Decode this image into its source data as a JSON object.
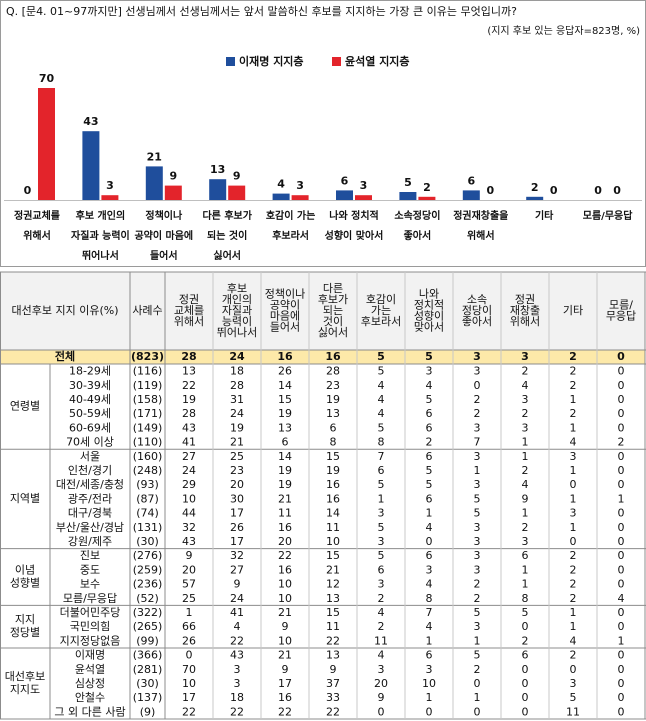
{
  "chart_data": {
    "type": "bar",
    "title": "Q. [문4. 01~97까지만] 선생님께서 선생님께서는 앞서 말씀하신 후보를 지지하는 가장 큰 이유는 무엇입니까?",
    "subtitle": "(지지 후보 있는 응답자=823명, %)",
    "categories": [
      [
        "정권교체를",
        "위해서"
      ],
      [
        "후보 개인의",
        "자질과 능력이",
        "뛰어나서"
      ],
      [
        "정책이나",
        "공약이 마음에",
        "들어서"
      ],
      [
        "다른 후보가",
        "되는 것이",
        "싫어서"
      ],
      [
        "호감이 가는",
        "후보라서"
      ],
      [
        "나와 정치적",
        "성향이 맞아서"
      ],
      [
        "소속정당이",
        "좋아서"
      ],
      [
        "정권재창출을",
        "위해서"
      ],
      [
        "기타"
      ],
      [
        "모름/무응답"
      ]
    ],
    "series": [
      {
        "name": "이재명 지지층",
        "color": "#1f4e9c",
        "values": [
          0,
          43,
          21,
          13,
          4,
          6,
          5,
          6,
          2,
          0
        ]
      },
      {
        "name": "윤석열 지지층",
        "color": "#e3242b",
        "values": [
          70,
          3,
          9,
          9,
          3,
          3,
          2,
          0,
          0,
          0
        ]
      }
    ]
  },
  "table": {
    "corner": "대선후보 지지 이유(%)",
    "n_header": "사례수",
    "columns": [
      [
        "정권",
        "교체를",
        "위해서"
      ],
      [
        "후보",
        "개인의",
        "자질과",
        "능력이",
        "뛰어나서"
      ],
      [
        "정책이나",
        "공약이",
        "마음에",
        "들어서"
      ],
      [
        "다른",
        "후보가",
        "되는",
        "것이",
        "싫어서"
      ],
      [
        "호감이",
        "가는",
        "후보라서"
      ],
      [
        "나와",
        "정치적",
        "성향이",
        "맞아서"
      ],
      [
        "소속",
        "정당이",
        "좋아서"
      ],
      [
        "정권",
        "재창출",
        "위해서"
      ],
      [
        "기타"
      ],
      [
        "모름/",
        "무응답"
      ]
    ],
    "total": {
      "label": "전체",
      "n": "(823)",
      "values": [
        28,
        24,
        16,
        16,
        5,
        5,
        3,
        3,
        2,
        0
      ]
    },
    "groups": [
      {
        "label": [
          "연령별"
        ],
        "rows": [
          {
            "label": "18-29세",
            "n": "(116)",
            "values": [
              13,
              18,
              26,
              28,
              5,
              3,
              3,
              2,
              2,
              0
            ]
          },
          {
            "label": "30-39세",
            "n": "(119)",
            "values": [
              22,
              28,
              14,
              23,
              4,
              4,
              0,
              4,
              2,
              0
            ]
          },
          {
            "label": "40-49세",
            "n": "(158)",
            "values": [
              19,
              31,
              15,
              19,
              4,
              5,
              2,
              3,
              1,
              0
            ]
          },
          {
            "label": "50-59세",
            "n": "(171)",
            "values": [
              28,
              24,
              19,
              13,
              4,
              6,
              2,
              2,
              2,
              0
            ]
          },
          {
            "label": "60-69세",
            "n": "(149)",
            "values": [
              43,
              19,
              13,
              6,
              5,
              6,
              3,
              3,
              1,
              0
            ]
          },
          {
            "label": "70세 이상",
            "n": "(110)",
            "values": [
              41,
              21,
              6,
              8,
              8,
              2,
              7,
              1,
              4,
              2
            ]
          }
        ]
      },
      {
        "label": [
          "지역별"
        ],
        "rows": [
          {
            "label": "서울",
            "n": "(160)",
            "values": [
              27,
              25,
              14,
              15,
              7,
              6,
              3,
              1,
              3,
              0
            ]
          },
          {
            "label": "인천/경기",
            "n": "(248)",
            "values": [
              24,
              23,
              19,
              19,
              6,
              5,
              1,
              2,
              1,
              0
            ]
          },
          {
            "label": "대전/세종/충청",
            "n": "(93)",
            "values": [
              29,
              20,
              19,
              16,
              5,
              5,
              3,
              4,
              0,
              0
            ]
          },
          {
            "label": "광주/전라",
            "n": "(87)",
            "values": [
              10,
              30,
              21,
              16,
              1,
              6,
              5,
              9,
              1,
              1
            ]
          },
          {
            "label": "대구/경북",
            "n": "(74)",
            "values": [
              44,
              17,
              11,
              14,
              3,
              1,
              5,
              1,
              3,
              0
            ]
          },
          {
            "label": "부산/울산/경남",
            "n": "(131)",
            "values": [
              32,
              26,
              16,
              11,
              5,
              4,
              3,
              2,
              1,
              0
            ]
          },
          {
            "label": "강원/제주",
            "n": "(30)",
            "values": [
              43,
              17,
              20,
              10,
              3,
              0,
              3,
              3,
              0,
              0
            ]
          }
        ]
      },
      {
        "label": [
          "이념",
          "성향별"
        ],
        "rows": [
          {
            "label": "진보",
            "n": "(276)",
            "values": [
              9,
              32,
              22,
              15,
              5,
              6,
              3,
              6,
              2,
              0
            ]
          },
          {
            "label": "중도",
            "n": "(259)",
            "values": [
              20,
              27,
              16,
              21,
              6,
              3,
              3,
              1,
              2,
              0
            ]
          },
          {
            "label": "보수",
            "n": "(236)",
            "values": [
              57,
              9,
              10,
              12,
              3,
              4,
              2,
              1,
              2,
              0
            ]
          },
          {
            "label": "모름/무응답",
            "n": "(52)",
            "values": [
              25,
              24,
              10,
              13,
              2,
              8,
              2,
              8,
              2,
              4
            ]
          }
        ]
      },
      {
        "label": [
          "지지",
          "정당별"
        ],
        "rows": [
          {
            "label": "더불어민주당",
            "n": "(322)",
            "values": [
              1,
              41,
              21,
              15,
              4,
              7,
              5,
              5,
              1,
              0
            ]
          },
          {
            "label": "국민의힘",
            "n": "(265)",
            "values": [
              66,
              4,
              9,
              11,
              2,
              4,
              3,
              0,
              1,
              0
            ]
          },
          {
            "label": "지지정당없음",
            "n": "(99)",
            "values": [
              26,
              22,
              10,
              22,
              11,
              1,
              1,
              2,
              4,
              1
            ]
          }
        ]
      },
      {
        "label": [
          "대선후보",
          "지지도"
        ],
        "rows": [
          {
            "label": "이재명",
            "n": "(366)",
            "values": [
              0,
              43,
              21,
              13,
              4,
              6,
              5,
              6,
              2,
              0
            ]
          },
          {
            "label": "윤석열",
            "n": "(281)",
            "values": [
              70,
              3,
              9,
              9,
              3,
              3,
              2,
              0,
              0,
              0
            ]
          },
          {
            "label": "심상정",
            "n": "(30)",
            "values": [
              10,
              3,
              17,
              37,
              20,
              10,
              0,
              0,
              3,
              0
            ]
          },
          {
            "label": "안철수",
            "n": "(137)",
            "values": [
              17,
              18,
              16,
              33,
              9,
              1,
              1,
              0,
              5,
              0
            ]
          },
          {
            "label": "그 외 다른 사람",
            "n": "(9)",
            "values": [
              22,
              22,
              22,
              22,
              0,
              0,
              0,
              0,
              11,
              0
            ]
          }
        ]
      }
    ]
  }
}
